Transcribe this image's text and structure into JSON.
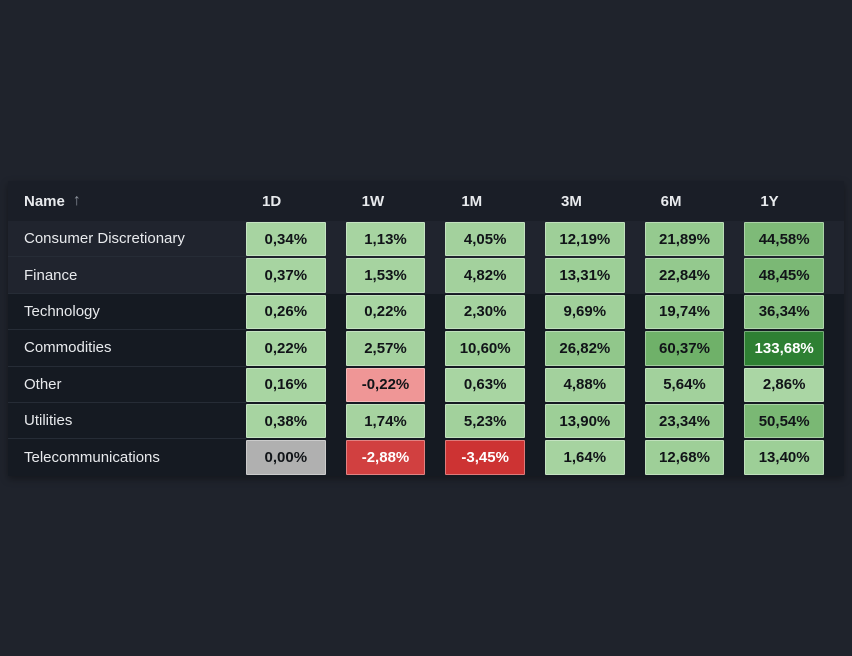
{
  "colors": {
    "page_bg": "#1f232c",
    "header_bg": "#1a1e27",
    "row_bg": "#151a22",
    "row_bg_highlight": "#20242e",
    "text_primary": "#e8eaed",
    "muted": "#8b919b",
    "cell_text_dark": "#111418",
    "cell_text_light": "#ffffff",
    "positive_light_green": "#a7d4a1",
    "positive_dark_green": "#2e8033",
    "negative_pink": "#ef9696",
    "negative_red": "#cd3333",
    "neutral_gray": "#b0b0b0"
  },
  "table": {
    "header": {
      "name_label": "Name",
      "sort_arrow": "↑",
      "columns": [
        "1D",
        "1W",
        "1M",
        "3M",
        "6M",
        "1Y"
      ]
    },
    "rows": [
      {
        "name": "Consumer Discretionary",
        "cells": [
          {
            "value": "0,34%",
            "bg": "#a7d4a1"
          },
          {
            "value": "1,13%",
            "bg": "#a7d4a1"
          },
          {
            "value": "4,05%",
            "bg": "#a3d19d"
          },
          {
            "value": "12,19%",
            "bg": "#9ecf98"
          },
          {
            "value": "21,89%",
            "bg": "#95ca8f"
          },
          {
            "value": "44,58%",
            "bg": "#7eba78"
          }
        ]
      },
      {
        "name": "Finance",
        "cells": [
          {
            "value": "0,37%",
            "bg": "#a7d4a1"
          },
          {
            "value": "1,53%",
            "bg": "#a6d3a0"
          },
          {
            "value": "4,82%",
            "bg": "#a3d19d"
          },
          {
            "value": "13,31%",
            "bg": "#9dcf97"
          },
          {
            "value": "22,84%",
            "bg": "#94c98e"
          },
          {
            "value": "48,45%",
            "bg": "#7bb875"
          }
        ]
      },
      {
        "name": "Technology",
        "cells": [
          {
            "value": "0,26%",
            "bg": "#a8d5a2"
          },
          {
            "value": "0,22%",
            "bg": "#a8d5a2"
          },
          {
            "value": "2,30%",
            "bg": "#a5d29f"
          },
          {
            "value": "9,69%",
            "bg": "#a0d09a"
          },
          {
            "value": "19,74%",
            "bg": "#97cb91"
          },
          {
            "value": "36,34%",
            "bg": "#88c182"
          }
        ]
      },
      {
        "name": "Commodities",
        "cells": [
          {
            "value": "0,22%",
            "bg": "#a8d5a2"
          },
          {
            "value": "2,57%",
            "bg": "#a5d29f"
          },
          {
            "value": "10,60%",
            "bg": "#9ed098"
          },
          {
            "value": "26,82%",
            "bg": "#91c78b"
          },
          {
            "value": "60,37%",
            "bg": "#6fb169"
          },
          {
            "value": "133,68%",
            "bg": "#2e8033",
            "fg": "#ffffff"
          }
        ]
      },
      {
        "name": "Other",
        "cells": [
          {
            "value": "0,16%",
            "bg": "#a8d5a2"
          },
          {
            "value": "-0,22%",
            "bg": "#ef9696"
          },
          {
            "value": "0,63%",
            "bg": "#a8d5a2"
          },
          {
            "value": "4,88%",
            "bg": "#a3d19d"
          },
          {
            "value": "5,64%",
            "bg": "#a2d19c"
          },
          {
            "value": "2,86%",
            "bg": "#aad6a4"
          }
        ]
      },
      {
        "name": "Utilities",
        "cells": [
          {
            "value": "0,38%",
            "bg": "#a7d4a1"
          },
          {
            "value": "1,74%",
            "bg": "#a6d3a0"
          },
          {
            "value": "5,23%",
            "bg": "#a2d19c"
          },
          {
            "value": "13,90%",
            "bg": "#9dcf97"
          },
          {
            "value": "23,34%",
            "bg": "#94c98e"
          },
          {
            "value": "50,54%",
            "bg": "#7ab874"
          }
        ]
      },
      {
        "name": "Telecommunications",
        "cells": [
          {
            "value": "0,00%",
            "bg": "#b0b0b0"
          },
          {
            "value": "-2,88%",
            "bg": "#d14040",
            "fg": "#ffffff"
          },
          {
            "value": "-3,45%",
            "bg": "#cd3333",
            "fg": "#ffffff"
          },
          {
            "value": "1,64%",
            "bg": "#a6d3a0"
          },
          {
            "value": "12,68%",
            "bg": "#9ecf98"
          },
          {
            "value": "13,40%",
            "bg": "#9dcf97"
          }
        ]
      }
    ]
  }
}
